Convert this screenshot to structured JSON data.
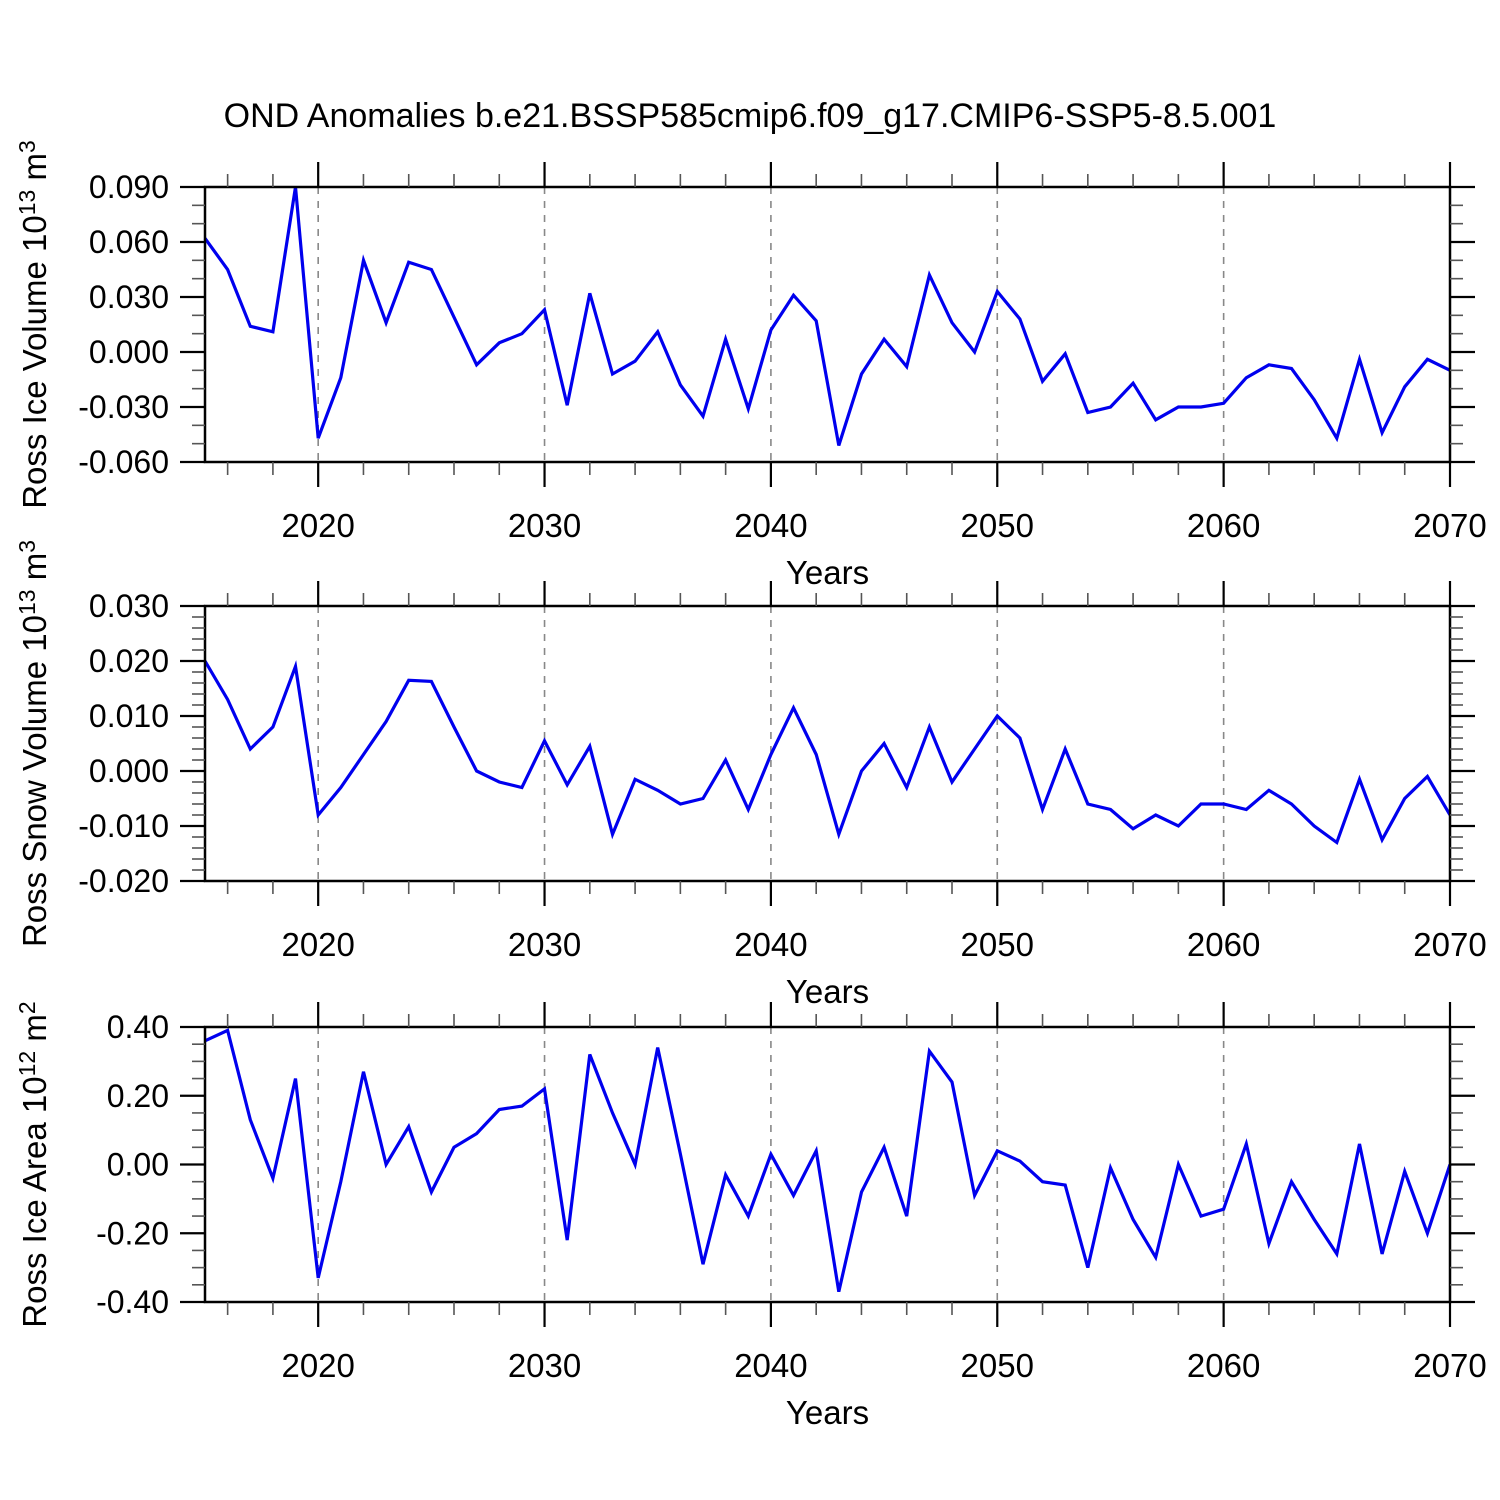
{
  "title": "OND Anomalies b.e21.BSSP585cmip6.f09_g17.CMIP6-SSP5-8.5.001",
  "colors": {
    "line": "#0000EE",
    "grid": "#888888",
    "frame": "#000000",
    "minor_tick": "#555555"
  },
  "chart_data": {
    "type": "line",
    "title": "OND Anomalies b.e21.BSSP585cmip6.f09_g17.CMIP6-SSP5-8.5.001",
    "xlabel": "Years",
    "xlim": [
      2015,
      2070
    ],
    "x_major_ticks": [
      2020,
      2030,
      2040,
      2050,
      2060,
      2070
    ],
    "x_minor_step": 2,
    "grid_years": [
      2020,
      2030,
      2040,
      2050,
      2060
    ],
    "legend_position": "none",
    "grid": "vertical-dashed",
    "x": [
      2015,
      2016,
      2017,
      2018,
      2019,
      2020,
      2021,
      2022,
      2023,
      2024,
      2025,
      2026,
      2027,
      2028,
      2029,
      2030,
      2031,
      2032,
      2033,
      2034,
      2035,
      2036,
      2037,
      2038,
      2039,
      2040,
      2041,
      2042,
      2043,
      2044,
      2045,
      2046,
      2047,
      2048,
      2049,
      2050,
      2051,
      2052,
      2053,
      2054,
      2055,
      2056,
      2057,
      2058,
      2059,
      2060,
      2061,
      2062,
      2063,
      2064,
      2065,
      2066,
      2067,
      2068,
      2069,
      2070
    ],
    "panels": [
      {
        "name": "ross-ice-volume",
        "ylabel_text": "Ross Ice Volume 10^13 m^3",
        "ylabel_segments": [
          {
            "text": "Ross Ice Volume 10",
            "sup": false
          },
          {
            "text": "13",
            "sup": true
          },
          {
            "text": " m",
            "sup": false
          },
          {
            "text": "3",
            "sup": true
          }
        ],
        "ylim": [
          -0.06,
          0.09
        ],
        "y_major_values": [
          0.09,
          0.06,
          0.03,
          0.0,
          -0.03,
          -0.06
        ],
        "y_major_labels": [
          "0.090",
          "0.060",
          "0.030",
          "0.000",
          "-0.030",
          "-0.060"
        ],
        "y_minor_step": 0.01,
        "values": [
          0.062,
          0.045,
          0.014,
          0.011,
          0.09,
          -0.047,
          -0.014,
          0.05,
          0.016,
          0.049,
          0.045,
          0.019,
          -0.007,
          0.005,
          0.01,
          0.023,
          -0.029,
          0.032,
          -0.012,
          -0.005,
          0.011,
          -0.018,
          -0.035,
          0.007,
          -0.031,
          0.012,
          0.031,
          0.017,
          -0.051,
          -0.012,
          0.007,
          -0.008,
          0.042,
          0.016,
          0.0,
          0.033,
          0.018,
          -0.016,
          -0.001,
          -0.033,
          -0.03,
          -0.017,
          -0.037,
          -0.03,
          -0.03,
          -0.028,
          -0.014,
          -0.007,
          -0.009,
          -0.026,
          -0.047,
          -0.004,
          -0.044,
          -0.019,
          -0.004,
          -0.01
        ]
      },
      {
        "name": "ross-snow-volume",
        "ylabel_text": "Ross Snow Volume 10^13 m^3",
        "ylabel_segments": [
          {
            "text": "Ross Snow Volume 10",
            "sup": false
          },
          {
            "text": "13",
            "sup": true
          },
          {
            "text": " m",
            "sup": false
          },
          {
            "text": "3",
            "sup": true
          }
        ],
        "ylim": [
          -0.02,
          0.03
        ],
        "y_major_values": [
          0.03,
          0.02,
          0.01,
          0.0,
          -0.01,
          -0.02
        ],
        "y_major_labels": [
          "0.030",
          "0.020",
          "0.010",
          "0.000",
          "-0.010",
          "-0.020"
        ],
        "y_minor_step": 0.002,
        "values": [
          0.02,
          0.013,
          0.004,
          0.008,
          0.019,
          -0.008,
          -0.003,
          0.003,
          0.009,
          0.0165,
          0.0163,
          0.008,
          0.0,
          -0.002,
          -0.003,
          0.0055,
          -0.0025,
          0.0045,
          -0.0115,
          -0.0015,
          -0.0035,
          -0.006,
          -0.005,
          0.002,
          -0.007,
          0.003,
          0.0115,
          0.003,
          -0.0115,
          0.0,
          0.005,
          -0.003,
          0.008,
          -0.002,
          0.004,
          0.01,
          0.006,
          -0.007,
          0.004,
          -0.006,
          -0.007,
          -0.0105,
          -0.008,
          -0.01,
          -0.006,
          -0.006,
          -0.007,
          -0.0035,
          -0.006,
          -0.01,
          -0.013,
          -0.0015,
          -0.0125,
          -0.005,
          -0.001,
          -0.008
        ]
      },
      {
        "name": "ross-ice-area",
        "ylabel_text": "Ross Ice Area 10^12 m^2",
        "ylabel_segments": [
          {
            "text": "Ross Ice Area 10",
            "sup": false
          },
          {
            "text": "12",
            "sup": true
          },
          {
            "text": " m",
            "sup": false
          },
          {
            "text": "2",
            "sup": true
          }
        ],
        "ylim": [
          -0.4,
          0.4
        ],
        "y_major_values": [
          0.4,
          0.2,
          0.0,
          -0.2,
          -0.4
        ],
        "y_major_labels": [
          "0.40",
          "0.20",
          "0.00",
          "-0.20",
          "-0.40"
        ],
        "y_minor_step": 0.05,
        "values": [
          0.36,
          0.39,
          0.13,
          -0.04,
          0.25,
          -0.33,
          -0.05,
          0.27,
          0.0,
          0.11,
          -0.08,
          0.05,
          0.09,
          0.16,
          0.17,
          0.22,
          -0.22,
          0.32,
          0.15,
          0.0,
          0.34,
          0.03,
          -0.29,
          -0.03,
          -0.15,
          0.03,
          -0.09,
          0.04,
          -0.37,
          -0.08,
          0.05,
          -0.15,
          0.33,
          0.24,
          -0.09,
          0.04,
          0.01,
          -0.05,
          -0.06,
          -0.3,
          -0.01,
          -0.16,
          -0.27,
          0.0,
          -0.15,
          -0.13,
          0.06,
          -0.23,
          -0.05,
          -0.16,
          -0.26,
          0.06,
          -0.26,
          -0.02,
          -0.2,
          0.0
        ]
      }
    ]
  }
}
